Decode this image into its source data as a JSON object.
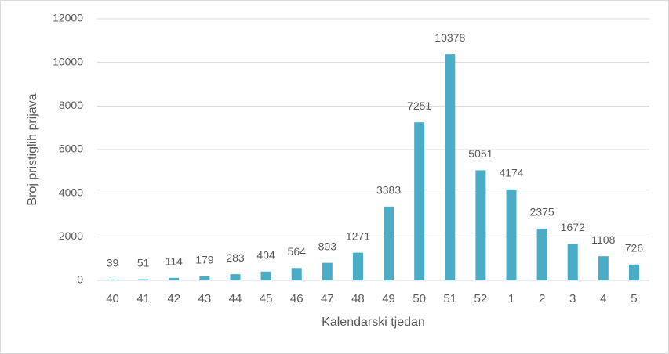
{
  "chart_data": {
    "type": "bar",
    "x_label": "Kalendarski tjedan",
    "y_label": "Broj pristiglih prijava",
    "categories": [
      "40",
      "41",
      "42",
      "43",
      "44",
      "45",
      "46",
      "47",
      "48",
      "49",
      "50",
      "51",
      "52",
      "1",
      "2",
      "3",
      "4",
      "5"
    ],
    "values": [
      39,
      51,
      114,
      179,
      283,
      404,
      564,
      803,
      1271,
      3383,
      7251,
      10378,
      5051,
      4174,
      2375,
      1672,
      1108,
      726
    ],
    "color": "#4bacc6",
    "ylim": [
      0,
      12000
    ],
    "yticks": [
      0,
      2000,
      4000,
      6000,
      8000,
      10000,
      12000
    ],
    "grid": true
  }
}
